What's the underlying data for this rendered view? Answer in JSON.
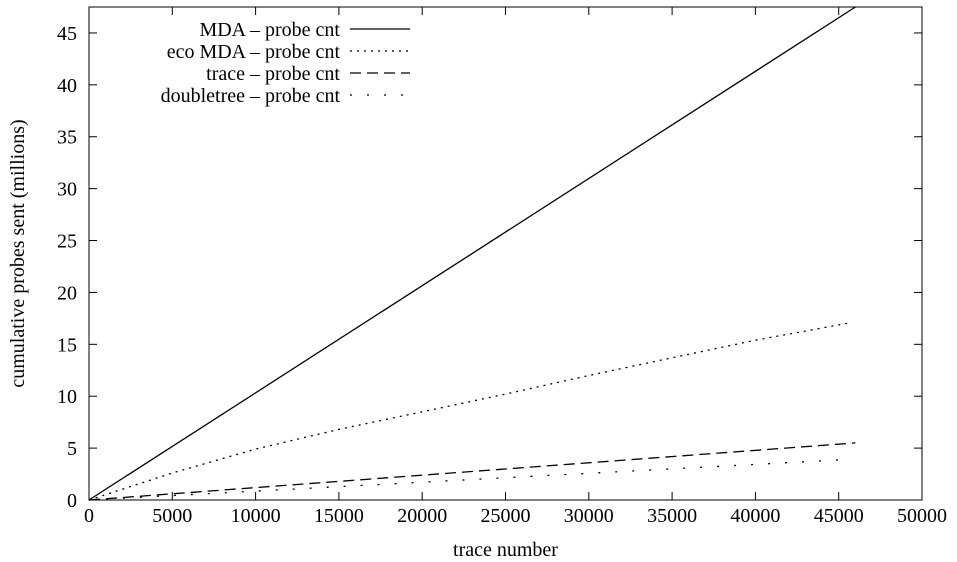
{
  "chart_data": {
    "type": "line",
    "title": "",
    "xlabel": "trace number",
    "ylabel": "cumulative probes sent (millions)",
    "xlim": [
      0,
      50000
    ],
    "ylim": [
      0,
      47.5
    ],
    "x_ticks": [
      0,
      5000,
      10000,
      15000,
      20000,
      25000,
      30000,
      35000,
      40000,
      45000,
      50000
    ],
    "y_ticks": [
      0,
      5,
      10,
      15,
      20,
      25,
      30,
      35,
      40,
      45
    ],
    "grid": false,
    "legend_position": "top-left",
    "series": [
      {
        "name": "MDA – probe cnt",
        "line_style": "solid",
        "x": [
          0,
          46000
        ],
        "y": [
          0,
          47.5
        ]
      },
      {
        "name": "eco MDA – probe cnt",
        "line_style": "dotted",
        "x": [
          0,
          5000,
          10000,
          15000,
          20000,
          25000,
          30000,
          35000,
          40000,
          45800
        ],
        "y": [
          0,
          2.6,
          4.9,
          6.8,
          8.5,
          10.2,
          12.0,
          13.7,
          15.4,
          17.1
        ]
      },
      {
        "name": "trace – probe cnt",
        "line_style": "dashed",
        "x": [
          0,
          46000
        ],
        "y": [
          0,
          5.5
        ]
      },
      {
        "name": "doubletree – probe cnt",
        "line_style": "sparse-dotted",
        "x": [
          0,
          45500
        ],
        "y": [
          0,
          3.9
        ]
      }
    ]
  }
}
